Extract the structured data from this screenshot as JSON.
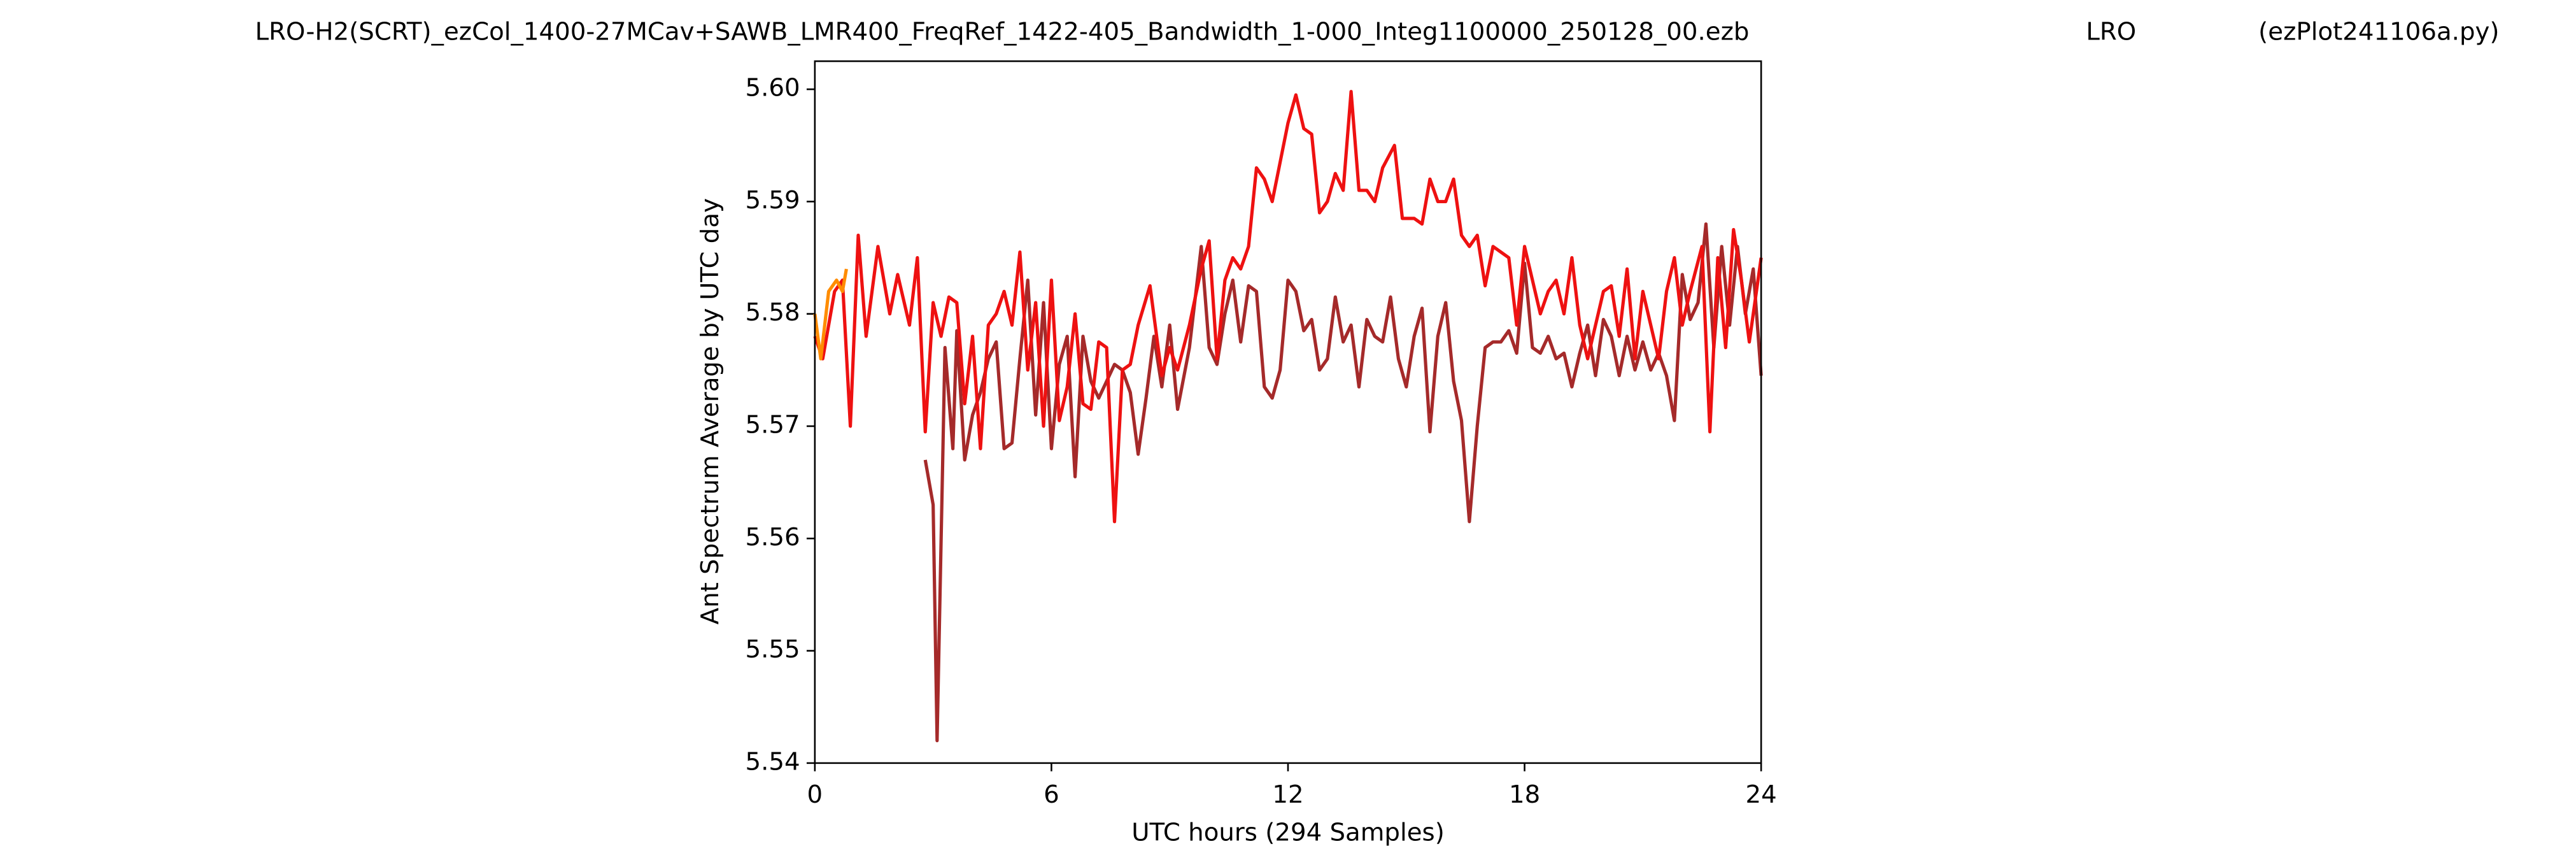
{
  "chart_data": {
    "type": "line",
    "title_left": "LRO-H2(SCRT)_ezCol_1400-27MCav+SAWB_LMR400_FreqRef_1422-405_Bandwidth_1-000_Integ1100000_250128_00.ezb",
    "title_center": "LRO",
    "title_right": "(ezPlot241106a.py)",
    "x_label": "UTC hours  (294 Samples)",
    "y_label": "Ant Spectrum Average by UTC day",
    "xlim": [
      0,
      24
    ],
    "xticks": [
      0,
      6,
      12,
      18,
      24
    ],
    "ylim": [
      5.54,
      5.6025
    ],
    "yticks": [
      {
        "value": 5.54,
        "label": "5.54"
      },
      {
        "value": 5.55,
        "label": "5.55"
      },
      {
        "value": 5.56,
        "label": "5.56"
      },
      {
        "value": 5.57,
        "label": "5.57"
      },
      {
        "value": 5.58,
        "label": "5.58"
      },
      {
        "value": 5.59,
        "label": "5.59"
      },
      {
        "value": 5.6,
        "label": "5.60"
      }
    ],
    "series": [
      {
        "color": "#a52a2a",
        "x": [
          2.8,
          3.0,
          3.1,
          3.3,
          3.5,
          3.6,
          3.8,
          4.0,
          4.2,
          4.4,
          4.6,
          4.8,
          5.0,
          5.2,
          5.4,
          5.6,
          5.8,
          6.0,
          6.2,
          6.4,
          6.6,
          6.8,
          7.0,
          7.2,
          7.4,
          7.6,
          7.8,
          8.0,
          8.2,
          8.4,
          8.6,
          8.8,
          9.0,
          9.2,
          9.5,
          9.8,
          10.0,
          10.2,
          10.4,
          10.6,
          10.8,
          11.0,
          11.2,
          11.4,
          11.6,
          11.8,
          12.0,
          12.2,
          12.4,
          12.6,
          12.8,
          13.0,
          13.2,
          13.4,
          13.6,
          13.8,
          14.0,
          14.2,
          14.4,
          14.6,
          14.8,
          15.0,
          15.2,
          15.4,
          15.6,
          15.8,
          16.0,
          16.2,
          16.4,
          16.6,
          16.8,
          17.0,
          17.2,
          17.4,
          17.6,
          17.8,
          18.0,
          18.2,
          18.4,
          18.6,
          18.8,
          19.0,
          19.2,
          19.4,
          19.6,
          19.8,
          20.0,
          20.2,
          20.4,
          20.6,
          20.8,
          21.0,
          21.2,
          21.4,
          21.6,
          21.8,
          22.0,
          22.2,
          22.4,
          22.6,
          22.8,
          23.0,
          23.2,
          23.4,
          23.6,
          23.8,
          24.0
        ],
        "values": [
          5.567,
          5.563,
          5.542,
          5.577,
          5.568,
          5.5785,
          5.567,
          5.571,
          5.573,
          5.576,
          5.5775,
          5.568,
          5.5685,
          5.576,
          5.583,
          5.571,
          5.581,
          5.568,
          5.5755,
          5.578,
          5.5655,
          5.578,
          5.574,
          5.5725,
          5.574,
          5.5755,
          5.575,
          5.573,
          5.5675,
          5.5725,
          5.578,
          5.5735,
          5.579,
          5.5715,
          5.577,
          5.586,
          5.577,
          5.5755,
          5.58,
          5.583,
          5.5775,
          5.5825,
          5.582,
          5.5735,
          5.5725,
          5.575,
          5.583,
          5.582,
          5.5785,
          5.5795,
          5.575,
          5.576,
          5.5815,
          5.5775,
          5.579,
          5.5735,
          5.5795,
          5.578,
          5.5775,
          5.5815,
          5.576,
          5.5735,
          5.578,
          5.5805,
          5.5695,
          5.578,
          5.581,
          5.574,
          5.5705,
          5.5615,
          5.57,
          5.577,
          5.5775,
          5.5775,
          5.5785,
          5.5765,
          5.5845,
          5.577,
          5.5765,
          5.578,
          5.576,
          5.5765,
          5.5735,
          5.5765,
          5.579,
          5.5745,
          5.5795,
          5.578,
          5.5745,
          5.578,
          5.575,
          5.5775,
          5.575,
          5.5765,
          5.5745,
          5.5705,
          5.5835,
          5.5795,
          5.581,
          5.588,
          5.577,
          5.586,
          5.579,
          5.586,
          5.58,
          5.584,
          5.5745
        ]
      },
      {
        "color": "#ee1111",
        "x": [
          0,
          0.2,
          0.5,
          0.7,
          0.9,
          1.1,
          1.3,
          1.6,
          1.9,
          2.1,
          2.4,
          2.6,
          2.8,
          3.0,
          3.2,
          3.4,
          3.6,
          3.8,
          4.0,
          4.2,
          4.4,
          4.6,
          4.8,
          5.0,
          5.2,
          5.4,
          5.6,
          5.8,
          6.0,
          6.2,
          6.4,
          6.6,
          6.8,
          7.0,
          7.2,
          7.4,
          7.6,
          7.8,
          8.0,
          8.2,
          8.5,
          8.8,
          9.0,
          9.2,
          9.5,
          9.8,
          10.0,
          10.2,
          10.4,
          10.6,
          10.8,
          11.0,
          11.2,
          11.4,
          11.6,
          11.8,
          12.0,
          12.2,
          12.4,
          12.6,
          12.8,
          13.0,
          13.2,
          13.4,
          13.6,
          13.8,
          14.0,
          14.2,
          14.4,
          14.7,
          14.9,
          15.2,
          15.4,
          15.6,
          15.8,
          16.0,
          16.2,
          16.4,
          16.6,
          16.8,
          17.0,
          17.2,
          17.4,
          17.6,
          17.8,
          18.0,
          18.2,
          18.4,
          18.6,
          18.8,
          19.0,
          19.2,
          19.4,
          19.6,
          19.8,
          20.0,
          20.2,
          20.4,
          20.6,
          20.8,
          21.0,
          21.2,
          21.4,
          21.6,
          21.8,
          22.0,
          22.2,
          22.5,
          22.7,
          22.9,
          23.1,
          23.3,
          23.5,
          23.7,
          24.0
        ],
        "values": [
          5.578,
          5.576,
          5.582,
          5.583,
          5.57,
          5.587,
          5.578,
          5.586,
          5.58,
          5.5835,
          5.579,
          5.585,
          5.5695,
          5.581,
          5.578,
          5.5815,
          5.581,
          5.572,
          5.578,
          5.568,
          5.579,
          5.58,
          5.582,
          5.579,
          5.5855,
          5.575,
          5.581,
          5.57,
          5.583,
          5.5705,
          5.5735,
          5.58,
          5.572,
          5.5715,
          5.5775,
          5.577,
          5.5615,
          5.575,
          5.5755,
          5.579,
          5.5825,
          5.5745,
          5.577,
          5.575,
          5.579,
          5.584,
          5.5865,
          5.576,
          5.583,
          5.585,
          5.584,
          5.586,
          5.593,
          5.592,
          5.59,
          5.5935,
          5.597,
          5.5995,
          5.5965,
          5.596,
          5.589,
          5.59,
          5.5925,
          5.591,
          5.5998,
          5.591,
          5.591,
          5.59,
          5.593,
          5.595,
          5.5885,
          5.5885,
          5.588,
          5.592,
          5.59,
          5.59,
          5.592,
          5.587,
          5.586,
          5.587,
          5.5825,
          5.586,
          5.5855,
          5.585,
          5.579,
          5.586,
          5.583,
          5.58,
          5.582,
          5.583,
          5.58,
          5.585,
          5.579,
          5.576,
          5.579,
          5.582,
          5.5825,
          5.578,
          5.584,
          5.576,
          5.582,
          5.579,
          5.576,
          5.582,
          5.585,
          5.579,
          5.582,
          5.586,
          5.5695,
          5.585,
          5.577,
          5.5875,
          5.583,
          5.5775,
          5.585
        ]
      },
      {
        "color": "#ff8c00",
        "x": [
          0,
          0.15,
          0.35,
          0.55,
          0.7,
          0.8
        ],
        "values": [
          5.58,
          5.576,
          5.582,
          5.583,
          5.582,
          5.584
        ]
      }
    ]
  }
}
